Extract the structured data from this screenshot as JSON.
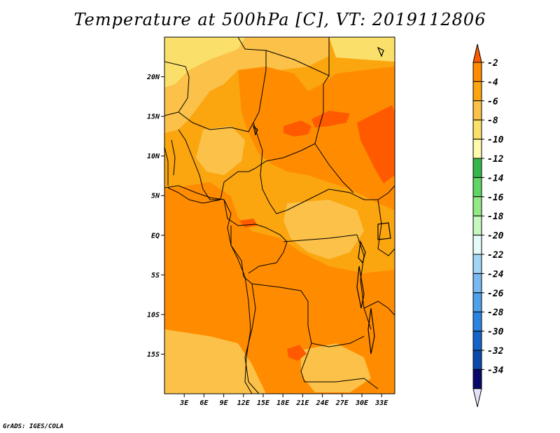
{
  "title": "Temperature at 500hPa [C], VT: 2019112806",
  "credit": "GrADS: IGES/COLA",
  "map": {
    "lon_labels": [
      "3E",
      "6E",
      "9E",
      "12E",
      "15E",
      "18E",
      "21E",
      "24E",
      "27E",
      "30E",
      "33E"
    ],
    "lon_values": [
      3,
      6,
      9,
      12,
      15,
      18,
      21,
      24,
      27,
      30,
      33
    ],
    "lat_labels": [
      "20N",
      "15N",
      "10N",
      "5N",
      "EQ",
      "5S",
      "10S",
      "15S"
    ],
    "lat_values": [
      20,
      15,
      10,
      5,
      0,
      -5,
      -10,
      -15
    ],
    "lon_range": [
      0,
      35
    ],
    "lat_range": [
      -20,
      25
    ]
  },
  "colorbar": {
    "labels": [
      "-2",
      "-4",
      "-6",
      "-8",
      "-10",
      "-12",
      "-14",
      "-16",
      "-18",
      "-20",
      "-22",
      "-24",
      "-26",
      "-28",
      "-30",
      "-32",
      "-34"
    ],
    "colors": [
      "#ff5a00",
      "#ff8c00",
      "#fba50f",
      "#fbc148",
      "#fae06a",
      "#fefaab",
      "#37b74a",
      "#5fd563",
      "#93e985",
      "#c6f7bf",
      "#e5fbfa",
      "#a3d5f6",
      "#79b9f1",
      "#4ea1ea",
      "#2b84e1",
      "#1565c8",
      "#0b4aaa",
      "#08086b",
      "#e3e3f8"
    ]
  },
  "chart_data": {
    "type": "heatmap",
    "title": "Temperature at 500hPa [C], VT: 2019112806",
    "variable": "Temperature at 500hPa",
    "units": "C",
    "valid_time": "2019112806",
    "x_ticks": [
      "3E",
      "6E",
      "9E",
      "12E",
      "15E",
      "18E",
      "21E",
      "24E",
      "27E",
      "30E",
      "33E"
    ],
    "y_ticks": [
      "20N",
      "15N",
      "10N",
      "5N",
      "EQ",
      "5S",
      "10S",
      "15S"
    ],
    "contour_levels": [
      -34,
      -32,
      -30,
      -28,
      -26,
      -24,
      -22,
      -20,
      -18,
      -16,
      -14,
      -12,
      -10,
      -8,
      -6,
      -4,
      -2
    ],
    "dominant_range": [
      -10,
      -2
    ]
  }
}
